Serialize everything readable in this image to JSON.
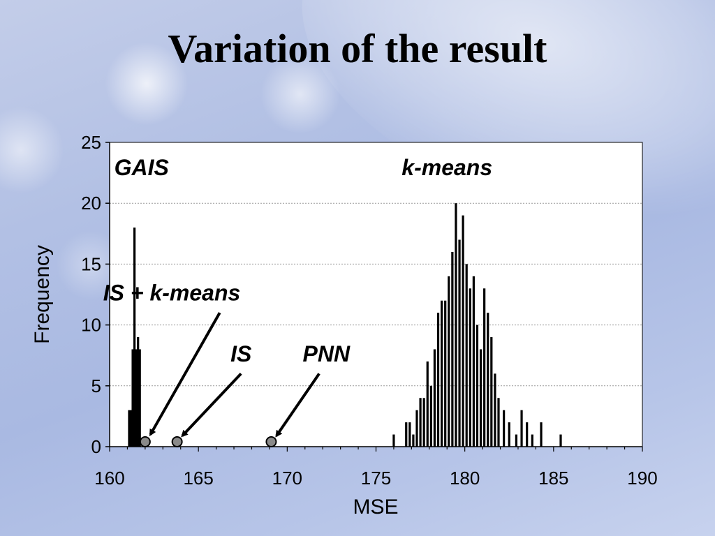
{
  "slide": {
    "title": "Variation of the result"
  },
  "chart_data": {
    "type": "bar",
    "xlabel": "MSE",
    "ylabel": "Frequency",
    "xlim": [
      160,
      190
    ],
    "ylim": [
      0,
      25
    ],
    "x_ticks": [
      160,
      165,
      170,
      175,
      180,
      185,
      190
    ],
    "y_ticks": [
      0,
      5,
      10,
      15,
      20,
      25
    ],
    "grid": true,
    "series": [
      {
        "name": "GAIS",
        "color": "#000000",
        "bars": [
          {
            "x": 161.1,
            "value": 3
          },
          {
            "x": 161.2,
            "value": 3
          },
          {
            "x": 161.3,
            "value": 8
          },
          {
            "x": 161.4,
            "value": 18
          },
          {
            "x": 161.5,
            "value": 8
          },
          {
            "x": 161.6,
            "value": 9
          },
          {
            "x": 161.7,
            "value": 8
          }
        ]
      },
      {
        "name": "k-means",
        "color": "#000000",
        "bars": [
          {
            "x": 176.0,
            "value": 1
          },
          {
            "x": 176.7,
            "value": 2
          },
          {
            "x": 176.9,
            "value": 2
          },
          {
            "x": 177.1,
            "value": 1
          },
          {
            "x": 177.3,
            "value": 3
          },
          {
            "x": 177.5,
            "value": 4
          },
          {
            "x": 177.7,
            "value": 4
          },
          {
            "x": 177.9,
            "value": 7
          },
          {
            "x": 178.1,
            "value": 5
          },
          {
            "x": 178.3,
            "value": 8
          },
          {
            "x": 178.5,
            "value": 11
          },
          {
            "x": 178.7,
            "value": 12
          },
          {
            "x": 178.9,
            "value": 12
          },
          {
            "x": 179.1,
            "value": 14
          },
          {
            "x": 179.3,
            "value": 16
          },
          {
            "x": 179.5,
            "value": 20
          },
          {
            "x": 179.7,
            "value": 17
          },
          {
            "x": 179.9,
            "value": 19
          },
          {
            "x": 180.1,
            "value": 15
          },
          {
            "x": 180.3,
            "value": 13
          },
          {
            "x": 180.5,
            "value": 14
          },
          {
            "x": 180.7,
            "value": 10
          },
          {
            "x": 180.9,
            "value": 8
          },
          {
            "x": 181.1,
            "value": 13
          },
          {
            "x": 181.3,
            "value": 11
          },
          {
            "x": 181.5,
            "value": 9
          },
          {
            "x": 181.7,
            "value": 6
          },
          {
            "x": 181.9,
            "value": 4
          },
          {
            "x": 182.2,
            "value": 3
          },
          {
            "x": 182.5,
            "value": 2
          },
          {
            "x": 182.9,
            "value": 1
          },
          {
            "x": 183.2,
            "value": 3
          },
          {
            "x": 183.5,
            "value": 2
          },
          {
            "x": 183.8,
            "value": 1
          },
          {
            "x": 184.3,
            "value": 2
          },
          {
            "x": 185.4,
            "value": 1
          }
        ]
      }
    ],
    "points": [
      {
        "name": "IS + k-means",
        "x": 162.0,
        "y": 0.4
      },
      {
        "name": "IS",
        "x": 163.8,
        "y": 0.4
      },
      {
        "name": "PNN",
        "x": 169.1,
        "y": 0.4
      }
    ],
    "annotations": [
      {
        "text": "GAIS",
        "x": 161.8,
        "y": 22.3
      },
      {
        "text": "k-means",
        "x": 179.0,
        "y": 22.3
      },
      {
        "text": "IS + k-means",
        "x": 163.5,
        "y": 12.0
      },
      {
        "text": "IS",
        "x": 167.4,
        "y": 7.0
      },
      {
        "text": "PNN",
        "x": 172.2,
        "y": 7.0
      }
    ],
    "arrows": [
      {
        "from": [
          166.2,
          11.0
        ],
        "to": [
          162.3,
          1.0
        ]
      },
      {
        "from": [
          167.4,
          6.0
        ],
        "to": [
          164.1,
          0.9
        ]
      },
      {
        "from": [
          171.8,
          6.0
        ],
        "to": [
          169.4,
          0.9
        ]
      }
    ]
  }
}
